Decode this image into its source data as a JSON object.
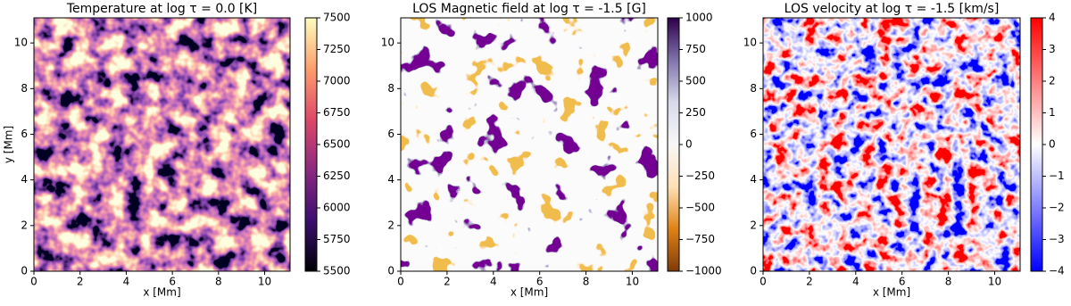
{
  "chart_data": [
    {
      "type": "heatmap",
      "title": "Temperature at log τ = 0.0 [K]",
      "xlabel": "x [Mm]",
      "ylabel": "y [Mm]",
      "xlim": [
        0,
        11.1
      ],
      "ylim": [
        0,
        11.1
      ],
      "xticks": [
        0,
        2,
        4,
        6,
        8,
        10
      ],
      "yticks": [
        0,
        2,
        4,
        6,
        8,
        10
      ],
      "colorbar": {
        "lim": [
          5500,
          7500
        ],
        "ticks": [
          5500,
          5750,
          6000,
          6250,
          6500,
          6750,
          7000,
          7250,
          7500
        ],
        "colors": [
          "#000004",
          "#3b0f70",
          "#8c2981",
          "#de4968",
          "#fe9f6d",
          "#fcfdbf"
        ]
      }
    },
    {
      "type": "heatmap",
      "title": "LOS Magnetic field at log τ = -1.5 [G]",
      "xlabel": "x [Mm]",
      "xlim": [
        0,
        11.1
      ],
      "ylim": [
        0,
        11.1
      ],
      "xticks": [
        0,
        2,
        4,
        6,
        8,
        10
      ],
      "yticks": [
        0,
        2,
        4,
        6,
        8,
        10
      ],
      "colorbar": {
        "lim": [
          -1000,
          1000
        ],
        "ticks": [
          {
            "value": -1000,
            "label": "−1000"
          },
          {
            "value": -750,
            "label": "−750"
          },
          {
            "value": -500,
            "label": "−500"
          },
          {
            "value": -250,
            "label": "−250"
          },
          0,
          250,
          500,
          750,
          1000
        ],
        "colors": [
          "#7f3b08",
          "#e08214",
          "#fee0b6",
          "#f7f7f7",
          "#d8daeb",
          "#8073ac",
          "#2d004b"
        ]
      }
    },
    {
      "type": "heatmap",
      "title": "LOS velocity at log τ = -1.5 [km/s]",
      "xlabel": "x [Mm]",
      "xlim": [
        0,
        11.1
      ],
      "ylim": [
        0,
        11.1
      ],
      "xticks": [
        0,
        2,
        4,
        6,
        8,
        10
      ],
      "yticks": [
        0,
        2,
        4,
        6,
        8,
        10
      ],
      "colorbar": {
        "lim": [
          -4,
          4
        ],
        "ticks": [
          {
            "value": -4,
            "label": "−4"
          },
          {
            "value": -3,
            "label": "−3"
          },
          {
            "value": -2,
            "label": "−2"
          },
          {
            "value": -1,
            "label": "−1"
          },
          0,
          1,
          2,
          3,
          4
        ],
        "colors": [
          "#0000ff",
          "#ffffff",
          "#ff0000"
        ]
      }
    }
  ]
}
